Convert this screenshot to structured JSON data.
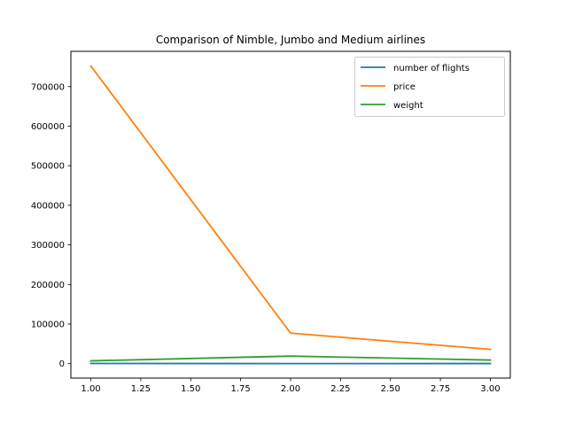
{
  "chart_data": {
    "type": "line",
    "title": "Comparison of Nimble, Jumbo and Medium airlines",
    "xlabel": "",
    "ylabel": "",
    "x": [
      1.0,
      2.0,
      3.0
    ],
    "xlim": [
      0.9,
      3.1
    ],
    "ylim": [
      -36500,
      789000
    ],
    "xticks": [
      1.0,
      1.25,
      1.5,
      1.75,
      2.0,
      2.25,
      2.5,
      2.75,
      3.0
    ],
    "xtick_labels": [
      "1.00",
      "1.25",
      "1.50",
      "1.75",
      "2.00",
      "2.25",
      "2.50",
      "2.75",
      "3.00"
    ],
    "yticks": [
      0,
      100000,
      200000,
      300000,
      400000,
      500000,
      600000,
      700000
    ],
    "ytick_labels": [
      "0",
      "100000",
      "200000",
      "300000",
      "400000",
      "500000",
      "600000",
      "700000"
    ],
    "grid": false,
    "legend_position": "top-right",
    "series": [
      {
        "name": "number of flights",
        "color": "#1f77b4",
        "values": [
          400,
          150,
          250
        ]
      },
      {
        "name": "price",
        "color": "#ff7f0e",
        "values": [
          752000,
          77000,
          36000
        ]
      },
      {
        "name": "weight",
        "color": "#2ca02c",
        "values": [
          7000,
          19000,
          9000
        ]
      }
    ]
  }
}
